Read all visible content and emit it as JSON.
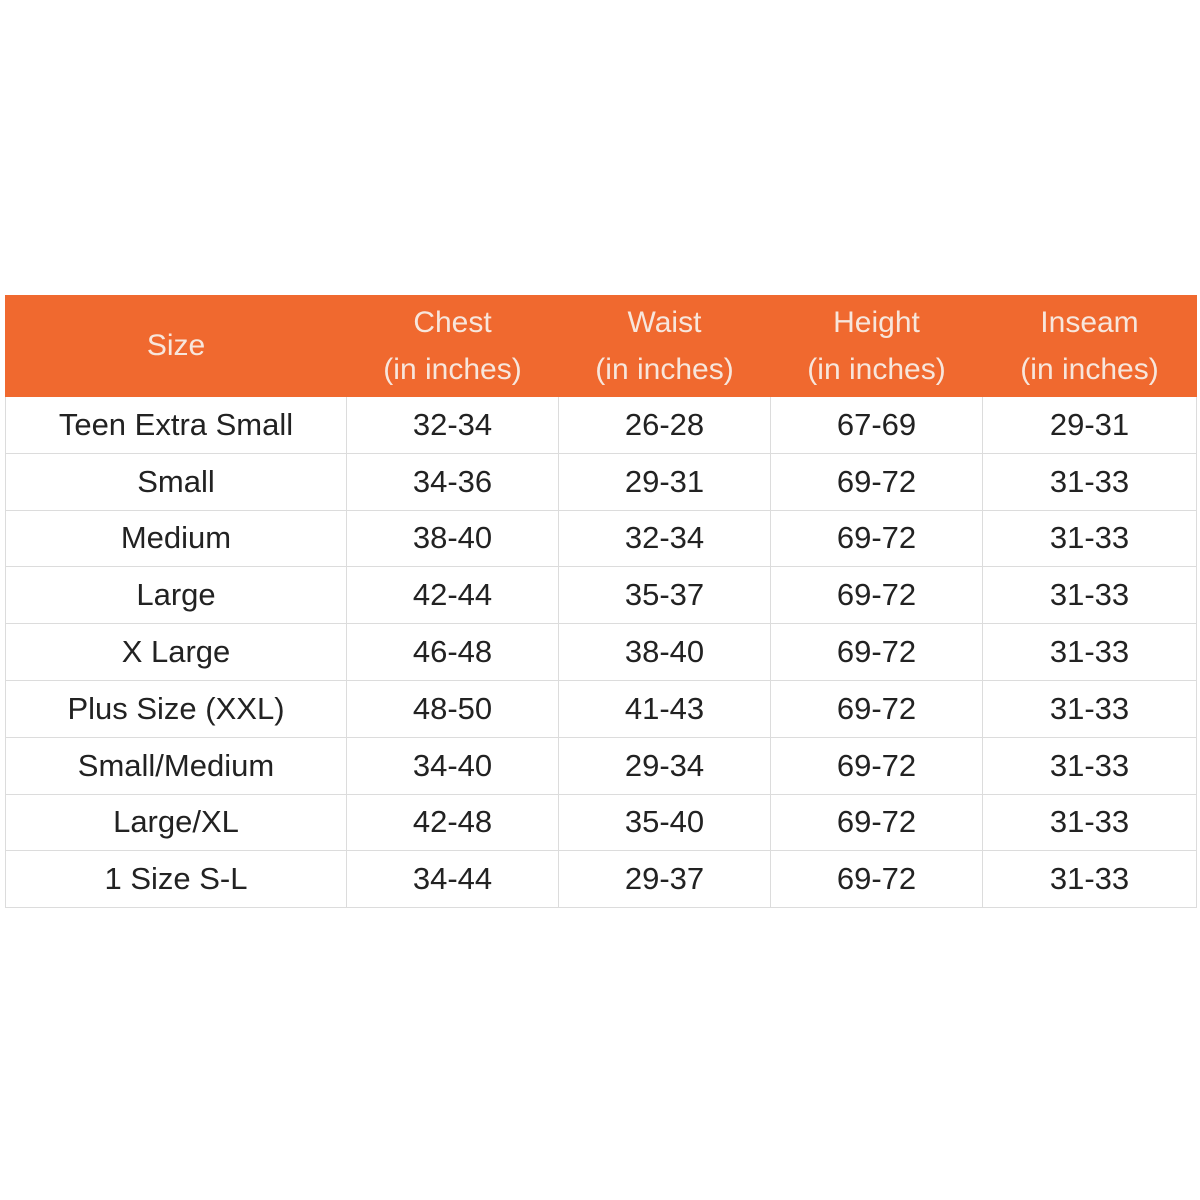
{
  "table": {
    "header": [
      [
        "Size"
      ],
      [
        "Chest",
        "(in inches)"
      ],
      [
        "Waist",
        "(in inches)"
      ],
      [
        "Height",
        "(in inches)"
      ],
      [
        "Inseam",
        "(in inches)"
      ]
    ],
    "rows": [
      [
        "Teen Extra Small",
        "32-34",
        "26-28",
        "67-69",
        "29-31"
      ],
      [
        "Small",
        "34-36",
        "29-31",
        "69-72",
        "31-33"
      ],
      [
        "Medium",
        "38-40",
        "32-34",
        "69-72",
        "31-33"
      ],
      [
        "Large",
        "42-44",
        "35-37",
        "69-72",
        "31-33"
      ],
      [
        "X Large",
        "46-48",
        "38-40",
        "69-72",
        "31-33"
      ],
      [
        "Plus Size (XXL)",
        "48-50",
        "41-43",
        "69-72",
        "31-33"
      ],
      [
        "Small/Medium",
        "34-40",
        "29-34",
        "69-72",
        "31-33"
      ],
      [
        "Large/XL",
        "42-48",
        "35-40",
        "69-72",
        "31-33"
      ],
      [
        "1 Size S-L",
        "34-44",
        "29-37",
        "69-72",
        "31-33"
      ]
    ]
  }
}
